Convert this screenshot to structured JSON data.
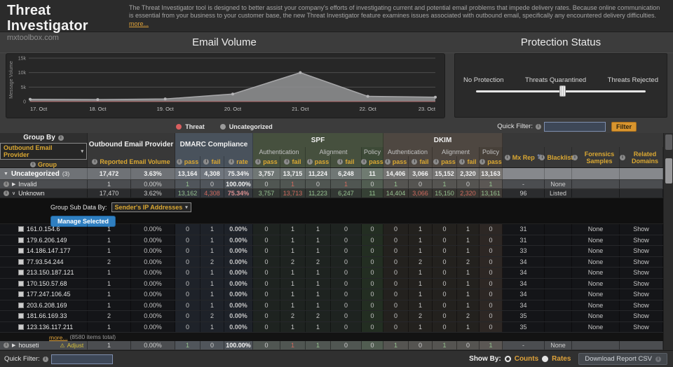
{
  "header": {
    "title": "Threat Investigator",
    "brand": "mxtoolbox.com",
    "description": "The Threat Investigator tool is designed to better assist your company's efforts of investigating current and potential email problems that impede delivery rates. Because online communication is essential from your business to your customer base, the new Threat Investigator feature examines issues associated with outbound email, specifically any encountered delivery difficulties.",
    "more_link": "more..."
  },
  "email_volume": {
    "title": "Email Volume"
  },
  "chart_data": {
    "type": "area",
    "title": "Email Volume",
    "x": [
      "17. Oct",
      "18. Oct",
      "19. Oct",
      "20. Oct",
      "21. Oct",
      "22. Oct",
      "23. Oct"
    ],
    "ylabel": "Message Volume",
    "yticks": [
      "0",
      "5k",
      "10k",
      "15k"
    ],
    "ytick_values": [
      0,
      5000,
      10000,
      15000
    ],
    "ylim": [
      0,
      15000
    ],
    "grid": true,
    "legend_position": "bottom",
    "series": [
      {
        "name": "Threat",
        "color": "#d95f5f",
        "values": [
          0,
          0,
          0,
          0,
          0,
          0,
          0
        ]
      },
      {
        "name": "Uncategorized",
        "color": "#9a9a9a",
        "values": [
          800,
          700,
          900,
          2600,
          10000,
          1800,
          1500
        ]
      }
    ]
  },
  "protection": {
    "title": "Protection Status",
    "labels": [
      "No Protection",
      "Threats Quarantined",
      "Threats Rejected"
    ],
    "slider_value_pct": 49
  },
  "quick_filter_top": {
    "label": "Quick Filter:",
    "button": "Filter",
    "value": ""
  },
  "table": {
    "group_by": {
      "label": "Group By",
      "dropdown": "Outbound Email Provider",
      "sub": "Group"
    },
    "groups": {
      "provider": {
        "name": "Outbound Email Provider",
        "sub": "Reported Email Volume"
      },
      "dmarc": {
        "name": "DMARC Compliance",
        "cols": [
          "pass",
          "fail",
          "rate"
        ]
      },
      "spf": {
        "name": "SPF",
        "subgroups": [
          "Authentication",
          "Alignment",
          "Policy"
        ],
        "cols": [
          "pass",
          "fail",
          "pass",
          "fail",
          "pass"
        ]
      },
      "dkim": {
        "name": "DKIM",
        "subgroups": [
          "Authentication",
          "Alignment",
          "Policy"
        ],
        "cols": [
          "pass",
          "fail",
          "pass",
          "fail",
          "pass"
        ]
      },
      "mx_rep": "Mx Rep",
      "blacklists": "Blacklists",
      "forensics": "Forensics Samples",
      "related": "Related Domains"
    },
    "sub_controls": {
      "label": "Group Sub Data By:",
      "dropdown": "Sender's IP Addresses",
      "button": "Manage Selected"
    },
    "rows": [
      {
        "kind": "group",
        "icon": "▼",
        "label": "Uncategorized",
        "count": "(3)",
        "cells": [
          [
            "17,472",
            "wb"
          ],
          [
            "3.63%",
            "wb"
          ],
          [
            "13,164",
            "wb"
          ],
          [
            "4,308",
            "wb"
          ],
          [
            "75.34%",
            "wb"
          ],
          [
            "3,757",
            "wb"
          ],
          [
            "13,715",
            "wb"
          ],
          [
            "11,224",
            "wb"
          ],
          [
            "6,248",
            "wb"
          ],
          [
            "11",
            "wb"
          ],
          [
            "14,406",
            "wb"
          ],
          [
            "3,066",
            "wb"
          ],
          [
            "15,152",
            "wb"
          ],
          [
            "2,320",
            "wb"
          ],
          [
            "13,163",
            "wb"
          ],
          [
            ""
          ],
          [
            ""
          ],
          [
            ""
          ],
          [
            ""
          ]
        ]
      },
      {
        "kind": "invalid",
        "info": true,
        "icon": "▶",
        "label": "Invalid",
        "cells": [
          [
            "1"
          ],
          [
            "0.00%"
          ],
          [
            "1",
            "g"
          ],
          [
            "0"
          ],
          [
            "100.00%",
            "wb"
          ],
          [
            "0"
          ],
          [
            "1",
            "r"
          ],
          [
            "0"
          ],
          [
            "1",
            "r"
          ],
          [
            "0"
          ],
          [
            "1",
            "g"
          ],
          [
            "0"
          ],
          [
            "1",
            "g"
          ],
          [
            "0"
          ],
          [
            "1",
            "g"
          ],
          [
            "-"
          ],
          [
            "None"
          ],
          [
            ""
          ],
          [
            ""
          ]
        ]
      },
      {
        "kind": "unknown",
        "info": true,
        "icon": "∨",
        "label": "Unknown",
        "cells": [
          [
            "17,470"
          ],
          [
            "3.62%"
          ],
          [
            "13,162",
            "g"
          ],
          [
            "4,308",
            "r"
          ],
          [
            "75.34%",
            "rp"
          ],
          [
            "3,757",
            "g"
          ],
          [
            "13,713",
            "r"
          ],
          [
            "11,223",
            "g"
          ],
          [
            "6,247",
            "g"
          ],
          [
            "11",
            "g"
          ],
          [
            "14,404",
            "g"
          ],
          [
            "3,066",
            "r"
          ],
          [
            "15,150",
            "g"
          ],
          [
            "2,320",
            "r"
          ],
          [
            "13,161",
            "g"
          ],
          [
            "96"
          ],
          [
            "Listed"
          ],
          [
            ""
          ],
          [
            ""
          ]
        ]
      }
    ],
    "ip_rows": [
      {
        "kind": "ip",
        "label": "161.0.154.6",
        "cells": [
          [
            "1"
          ],
          [
            "0.00%"
          ],
          [
            "0"
          ],
          [
            "1",
            "r"
          ],
          [
            "0.00%",
            "rb"
          ],
          [
            "0"
          ],
          [
            "1",
            "r"
          ],
          [
            "1"
          ],
          [
            "0"
          ],
          [
            "0"
          ],
          [
            "0"
          ],
          [
            "1",
            "r"
          ],
          [
            "0"
          ],
          [
            "1",
            "r"
          ],
          [
            "0"
          ],
          [
            "31"
          ],
          [
            ""
          ],
          [
            "None"
          ],
          [
            "Show",
            "link"
          ]
        ]
      },
      {
        "kind": "ip",
        "label": "179.6.206.149",
        "cells": [
          [
            "1"
          ],
          [
            "0.00%"
          ],
          [
            "0"
          ],
          [
            "1",
            "r"
          ],
          [
            "0.00%",
            "rb"
          ],
          [
            "0"
          ],
          [
            "1",
            "r"
          ],
          [
            "1"
          ],
          [
            "0"
          ],
          [
            "0"
          ],
          [
            "0"
          ],
          [
            "1",
            "r"
          ],
          [
            "0"
          ],
          [
            "1",
            "r"
          ],
          [
            "0"
          ],
          [
            "31"
          ],
          [
            ""
          ],
          [
            "None"
          ],
          [
            "Show",
            "link"
          ]
        ]
      },
      {
        "kind": "ip",
        "label": "14.186.147.177",
        "cells": [
          [
            "1"
          ],
          [
            "0.00%"
          ],
          [
            "0"
          ],
          [
            "1",
            "r"
          ],
          [
            "0.00%",
            "rb"
          ],
          [
            "0"
          ],
          [
            "1",
            "r"
          ],
          [
            "1"
          ],
          [
            "0"
          ],
          [
            "0"
          ],
          [
            "0"
          ],
          [
            "1",
            "r"
          ],
          [
            "0"
          ],
          [
            "1",
            "r"
          ],
          [
            "0"
          ],
          [
            "33"
          ],
          [
            ""
          ],
          [
            "None"
          ],
          [
            "Show",
            "link"
          ]
        ]
      },
      {
        "kind": "ip",
        "label": "77.93.54.244",
        "cells": [
          [
            "2"
          ],
          [
            "0.00%"
          ],
          [
            "0"
          ],
          [
            "2",
            "r"
          ],
          [
            "0.00%",
            "rb"
          ],
          [
            "0"
          ],
          [
            "2",
            "r"
          ],
          [
            "2"
          ],
          [
            "0"
          ],
          [
            "0"
          ],
          [
            "0"
          ],
          [
            "2",
            "r"
          ],
          [
            "0"
          ],
          [
            "2",
            "r"
          ],
          [
            "0"
          ],
          [
            "34"
          ],
          [
            ""
          ],
          [
            "None"
          ],
          [
            "Show",
            "link"
          ]
        ]
      },
      {
        "kind": "ip",
        "label": "213.150.187.121",
        "cells": [
          [
            "1"
          ],
          [
            "0.00%"
          ],
          [
            "0"
          ],
          [
            "1",
            "r"
          ],
          [
            "0.00%",
            "rb"
          ],
          [
            "0"
          ],
          [
            "1",
            "r"
          ],
          [
            "1"
          ],
          [
            "0"
          ],
          [
            "0"
          ],
          [
            "0"
          ],
          [
            "1",
            "r"
          ],
          [
            "0"
          ],
          [
            "1",
            "r"
          ],
          [
            "0"
          ],
          [
            "34"
          ],
          [
            ""
          ],
          [
            "None"
          ],
          [
            "Show",
            "link"
          ]
        ]
      },
      {
        "kind": "ip",
        "label": "170.150.57.68",
        "cells": [
          [
            "1"
          ],
          [
            "0.00%"
          ],
          [
            "0"
          ],
          [
            "1",
            "r"
          ],
          [
            "0.00%",
            "rb"
          ],
          [
            "0"
          ],
          [
            "1",
            "r"
          ],
          [
            "1"
          ],
          [
            "0"
          ],
          [
            "0"
          ],
          [
            "0"
          ],
          [
            "1",
            "r"
          ],
          [
            "0"
          ],
          [
            "1",
            "r"
          ],
          [
            "0"
          ],
          [
            "34"
          ],
          [
            ""
          ],
          [
            "None"
          ],
          [
            "Show",
            "link"
          ]
        ]
      },
      {
        "kind": "ip",
        "label": "177.247.106.45",
        "cells": [
          [
            "1"
          ],
          [
            "0.00%"
          ],
          [
            "0"
          ],
          [
            "1",
            "r"
          ],
          [
            "0.00%",
            "rb"
          ],
          [
            "0"
          ],
          [
            "1",
            "r"
          ],
          [
            "1"
          ],
          [
            "0"
          ],
          [
            "0"
          ],
          [
            "0"
          ],
          [
            "1",
            "r"
          ],
          [
            "0"
          ],
          [
            "1",
            "r"
          ],
          [
            "0"
          ],
          [
            "34"
          ],
          [
            ""
          ],
          [
            "None"
          ],
          [
            "Show",
            "link"
          ]
        ]
      },
      {
        "kind": "ip",
        "label": "203.6.208.169",
        "cells": [
          [
            "1"
          ],
          [
            "0.00%"
          ],
          [
            "0"
          ],
          [
            "1",
            "r"
          ],
          [
            "0.00%",
            "rb"
          ],
          [
            "0"
          ],
          [
            "1",
            "r"
          ],
          [
            "1"
          ],
          [
            "0"
          ],
          [
            "0"
          ],
          [
            "0"
          ],
          [
            "1",
            "r"
          ],
          [
            "0"
          ],
          [
            "1",
            "r"
          ],
          [
            "0"
          ],
          [
            "34"
          ],
          [
            ""
          ],
          [
            "None"
          ],
          [
            "Show",
            "link"
          ]
        ]
      },
      {
        "kind": "ip",
        "label": "181.66.169.33",
        "cells": [
          [
            "2"
          ],
          [
            "0.00%"
          ],
          [
            "0"
          ],
          [
            "2",
            "r"
          ],
          [
            "0.00%",
            "rb"
          ],
          [
            "0"
          ],
          [
            "2",
            "r"
          ],
          [
            "2"
          ],
          [
            "0"
          ],
          [
            "0"
          ],
          [
            "0"
          ],
          [
            "2",
            "r"
          ],
          [
            "0"
          ],
          [
            "2",
            "r"
          ],
          [
            "0"
          ],
          [
            "35"
          ],
          [
            ""
          ],
          [
            "None"
          ],
          [
            "Show",
            "link"
          ]
        ]
      },
      {
        "kind": "ip",
        "label": "123.136.117.211",
        "cells": [
          [
            "1"
          ],
          [
            "0.00%"
          ],
          [
            "0"
          ],
          [
            "1",
            "r"
          ],
          [
            "0.00%",
            "rb"
          ],
          [
            "0"
          ],
          [
            "1",
            "r"
          ],
          [
            "1"
          ],
          [
            "0"
          ],
          [
            "0"
          ],
          [
            "0"
          ],
          [
            "1",
            "r"
          ],
          [
            "0"
          ],
          [
            "1",
            "r"
          ],
          [
            "0"
          ],
          [
            "35"
          ],
          [
            ""
          ],
          [
            "None"
          ],
          [
            "Show",
            "link"
          ]
        ]
      }
    ],
    "more": {
      "link": "more...",
      "total": "(8580 items total)"
    },
    "footer_rows": [
      {
        "kind": "houseti",
        "info": true,
        "icon": "▶",
        "label": "houseti",
        "adjust": "Adjust",
        "cells": [
          [
            "1"
          ],
          [
            "0.00%"
          ],
          [
            "1",
            "g"
          ],
          [
            "0"
          ],
          [
            "100.00%",
            "wb"
          ],
          [
            "0"
          ],
          [
            "1",
            "r"
          ],
          [
            "1",
            "g"
          ],
          [
            "0"
          ],
          [
            "0"
          ],
          [
            "1",
            "g"
          ],
          [
            "0"
          ],
          [
            "1",
            "g"
          ],
          [
            "0"
          ],
          [
            "1",
            "g"
          ],
          [
            "-"
          ],
          [
            "None"
          ],
          [
            ""
          ],
          [
            ""
          ]
        ]
      }
    ]
  },
  "footer": {
    "quick_filter_label": "Quick Filter:",
    "show_by": "Show By:",
    "counts": "Counts",
    "rates": "Rates",
    "download": "Download Report CSV"
  }
}
